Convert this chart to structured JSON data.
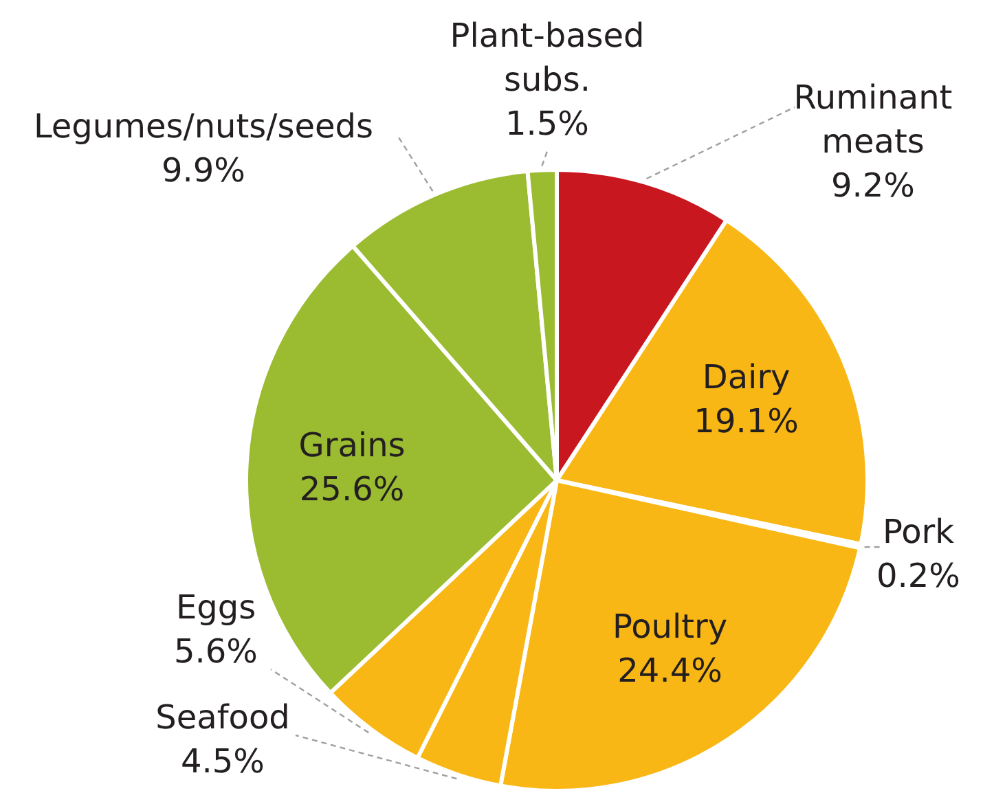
{
  "chart_data": {
    "type": "pie",
    "categories": [
      "Ruminant meats",
      "Dairy",
      "Pork",
      "Poultry",
      "Seafood",
      "Eggs",
      "Grains",
      "Legumes/nuts/seeds",
      "Plant-based subs."
    ],
    "values": [
      9.2,
      19.1,
      0.2,
      24.4,
      4.5,
      5.6,
      25.6,
      9.9,
      1.5
    ],
    "colors": [
      "#c8171e",
      "#f9b715",
      "#f9b715",
      "#f9b715",
      "#f9b715",
      "#f9b715",
      "#9bbb31",
      "#9bbb31",
      "#9bbb31"
    ],
    "value_labels": [
      "9.2%",
      "19.1%",
      "0.2%",
      "24.4%",
      "4.5%",
      "5.6%",
      "25.6%",
      "9.9%",
      "1.5%"
    ]
  }
}
